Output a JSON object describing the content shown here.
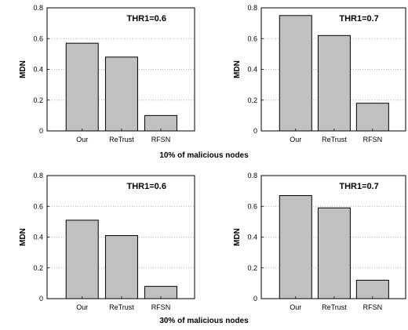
{
  "chart_data": [
    {
      "type": "bar",
      "group": 0,
      "categories": [
        "Our",
        "ReTrust",
        "RFSN"
      ],
      "values": [
        0.57,
        0.48,
        0.1
      ],
      "ylabel": "MDN",
      "annotation": "THR1=0.6",
      "ylim": [
        0,
        0.8
      ],
      "yticks": [
        "0",
        "0.2",
        "0.4",
        "0.6",
        "0.8"
      ],
      "grid": "dotted-y"
    },
    {
      "type": "bar",
      "group": 0,
      "categories": [
        "Our",
        "ReTrust",
        "RFSN"
      ],
      "values": [
        0.75,
        0.62,
        0.18
      ],
      "ylabel": "MDN",
      "annotation": "THR1=0.7",
      "ylim": [
        0,
        0.8
      ],
      "yticks": [
        "0",
        "0.2",
        "0.4",
        "0.6",
        "0.8"
      ],
      "grid": "dotted-y"
    },
    {
      "type": "bar",
      "group": 1,
      "categories": [
        "Our",
        "ReTrust",
        "RFSN"
      ],
      "values": [
        0.51,
        0.41,
        0.08
      ],
      "ylabel": "MDN",
      "annotation": "THR1=0.6",
      "ylim": [
        0,
        0.8
      ],
      "yticks": [
        "0",
        "0.2",
        "0.4",
        "0.6",
        "0.8"
      ],
      "grid": "dotted-y"
    },
    {
      "type": "bar",
      "group": 1,
      "categories": [
        "Our",
        "ReTrust",
        "RFSN"
      ],
      "values": [
        0.67,
        0.59,
        0.12
      ],
      "ylabel": "MDN",
      "annotation": "THR1=0.7",
      "ylim": [
        0,
        0.8
      ],
      "yticks": [
        "0",
        "0.2",
        "0.4",
        "0.6",
        "0.8"
      ],
      "grid": "dotted-y"
    }
  ],
  "captions": [
    "10% of malicious nodes",
    "30% of malicious nodes"
  ],
  "colors": {
    "bar_fill": "#c0c0c0",
    "bar_stroke": "#000000",
    "axis": "#000000",
    "grid": "#9a9a9a"
  }
}
